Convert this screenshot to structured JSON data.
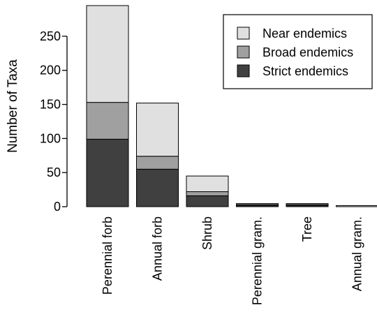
{
  "chart_data": {
    "type": "bar",
    "stacked": true,
    "title": "",
    "xlabel": "",
    "ylabel": "Number of Taxa",
    "ylim": [
      0,
      295
    ],
    "yticks": [
      0,
      50,
      100,
      150,
      200,
      250
    ],
    "grid": false,
    "legend_position": "top-right",
    "categories": [
      "Perennial forb",
      "Annual forb",
      "Shrub",
      "Perennial gram.",
      "Tree",
      "Annual gram."
    ],
    "series": [
      {
        "name": "Strict endemics",
        "color": "#404040",
        "values": [
          99,
          55,
          16,
          2,
          2,
          0
        ]
      },
      {
        "name": "Broad endemics",
        "color": "#a0a0a0",
        "values": [
          54,
          19,
          6,
          1,
          1,
          0
        ]
      },
      {
        "name": "Near endemics",
        "color": "#e0e0e0",
        "values": [
          142,
          78,
          23,
          1,
          1,
          1
        ]
      }
    ],
    "legend_order": [
      "Near endemics",
      "Broad endemics",
      "Strict endemics"
    ]
  }
}
